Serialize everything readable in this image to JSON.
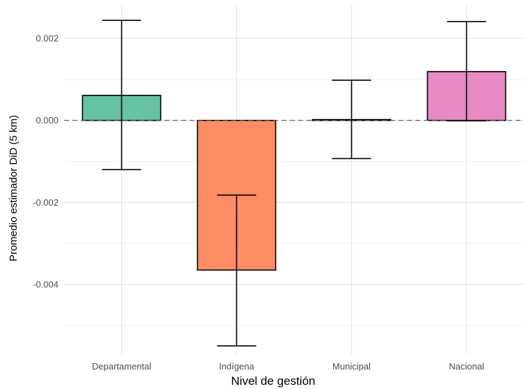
{
  "chart_data": {
    "type": "bar",
    "xlabel": "Nivel de gestión",
    "ylabel": "Promedio estimador DiD (5 km)",
    "categories": [
      "Departamental",
      "Indígena",
      "Municipal",
      "Nacional"
    ],
    "values": [
      0.00061,
      -0.00365,
      2e-05,
      0.00119
    ],
    "error_low": [
      -0.0012,
      -0.0055,
      -0.00093,
      -1e-05
    ],
    "error_high": [
      0.00244,
      -0.00182,
      0.00098,
      0.00241
    ],
    "colors": [
      "#66c2a5",
      "#fc8d62",
      "#8da0cb",
      "#e78ac3"
    ],
    "ylim": [
      -0.0057,
      0.0028
    ],
    "y_ticks": [
      0.002,
      0.0,
      -0.002,
      -0.004
    ],
    "y_tick_labels": [
      "0.002",
      "0.000",
      "-0.002",
      "-0.004"
    ],
    "reference_line": 0,
    "grid": true,
    "legend": "none"
  }
}
